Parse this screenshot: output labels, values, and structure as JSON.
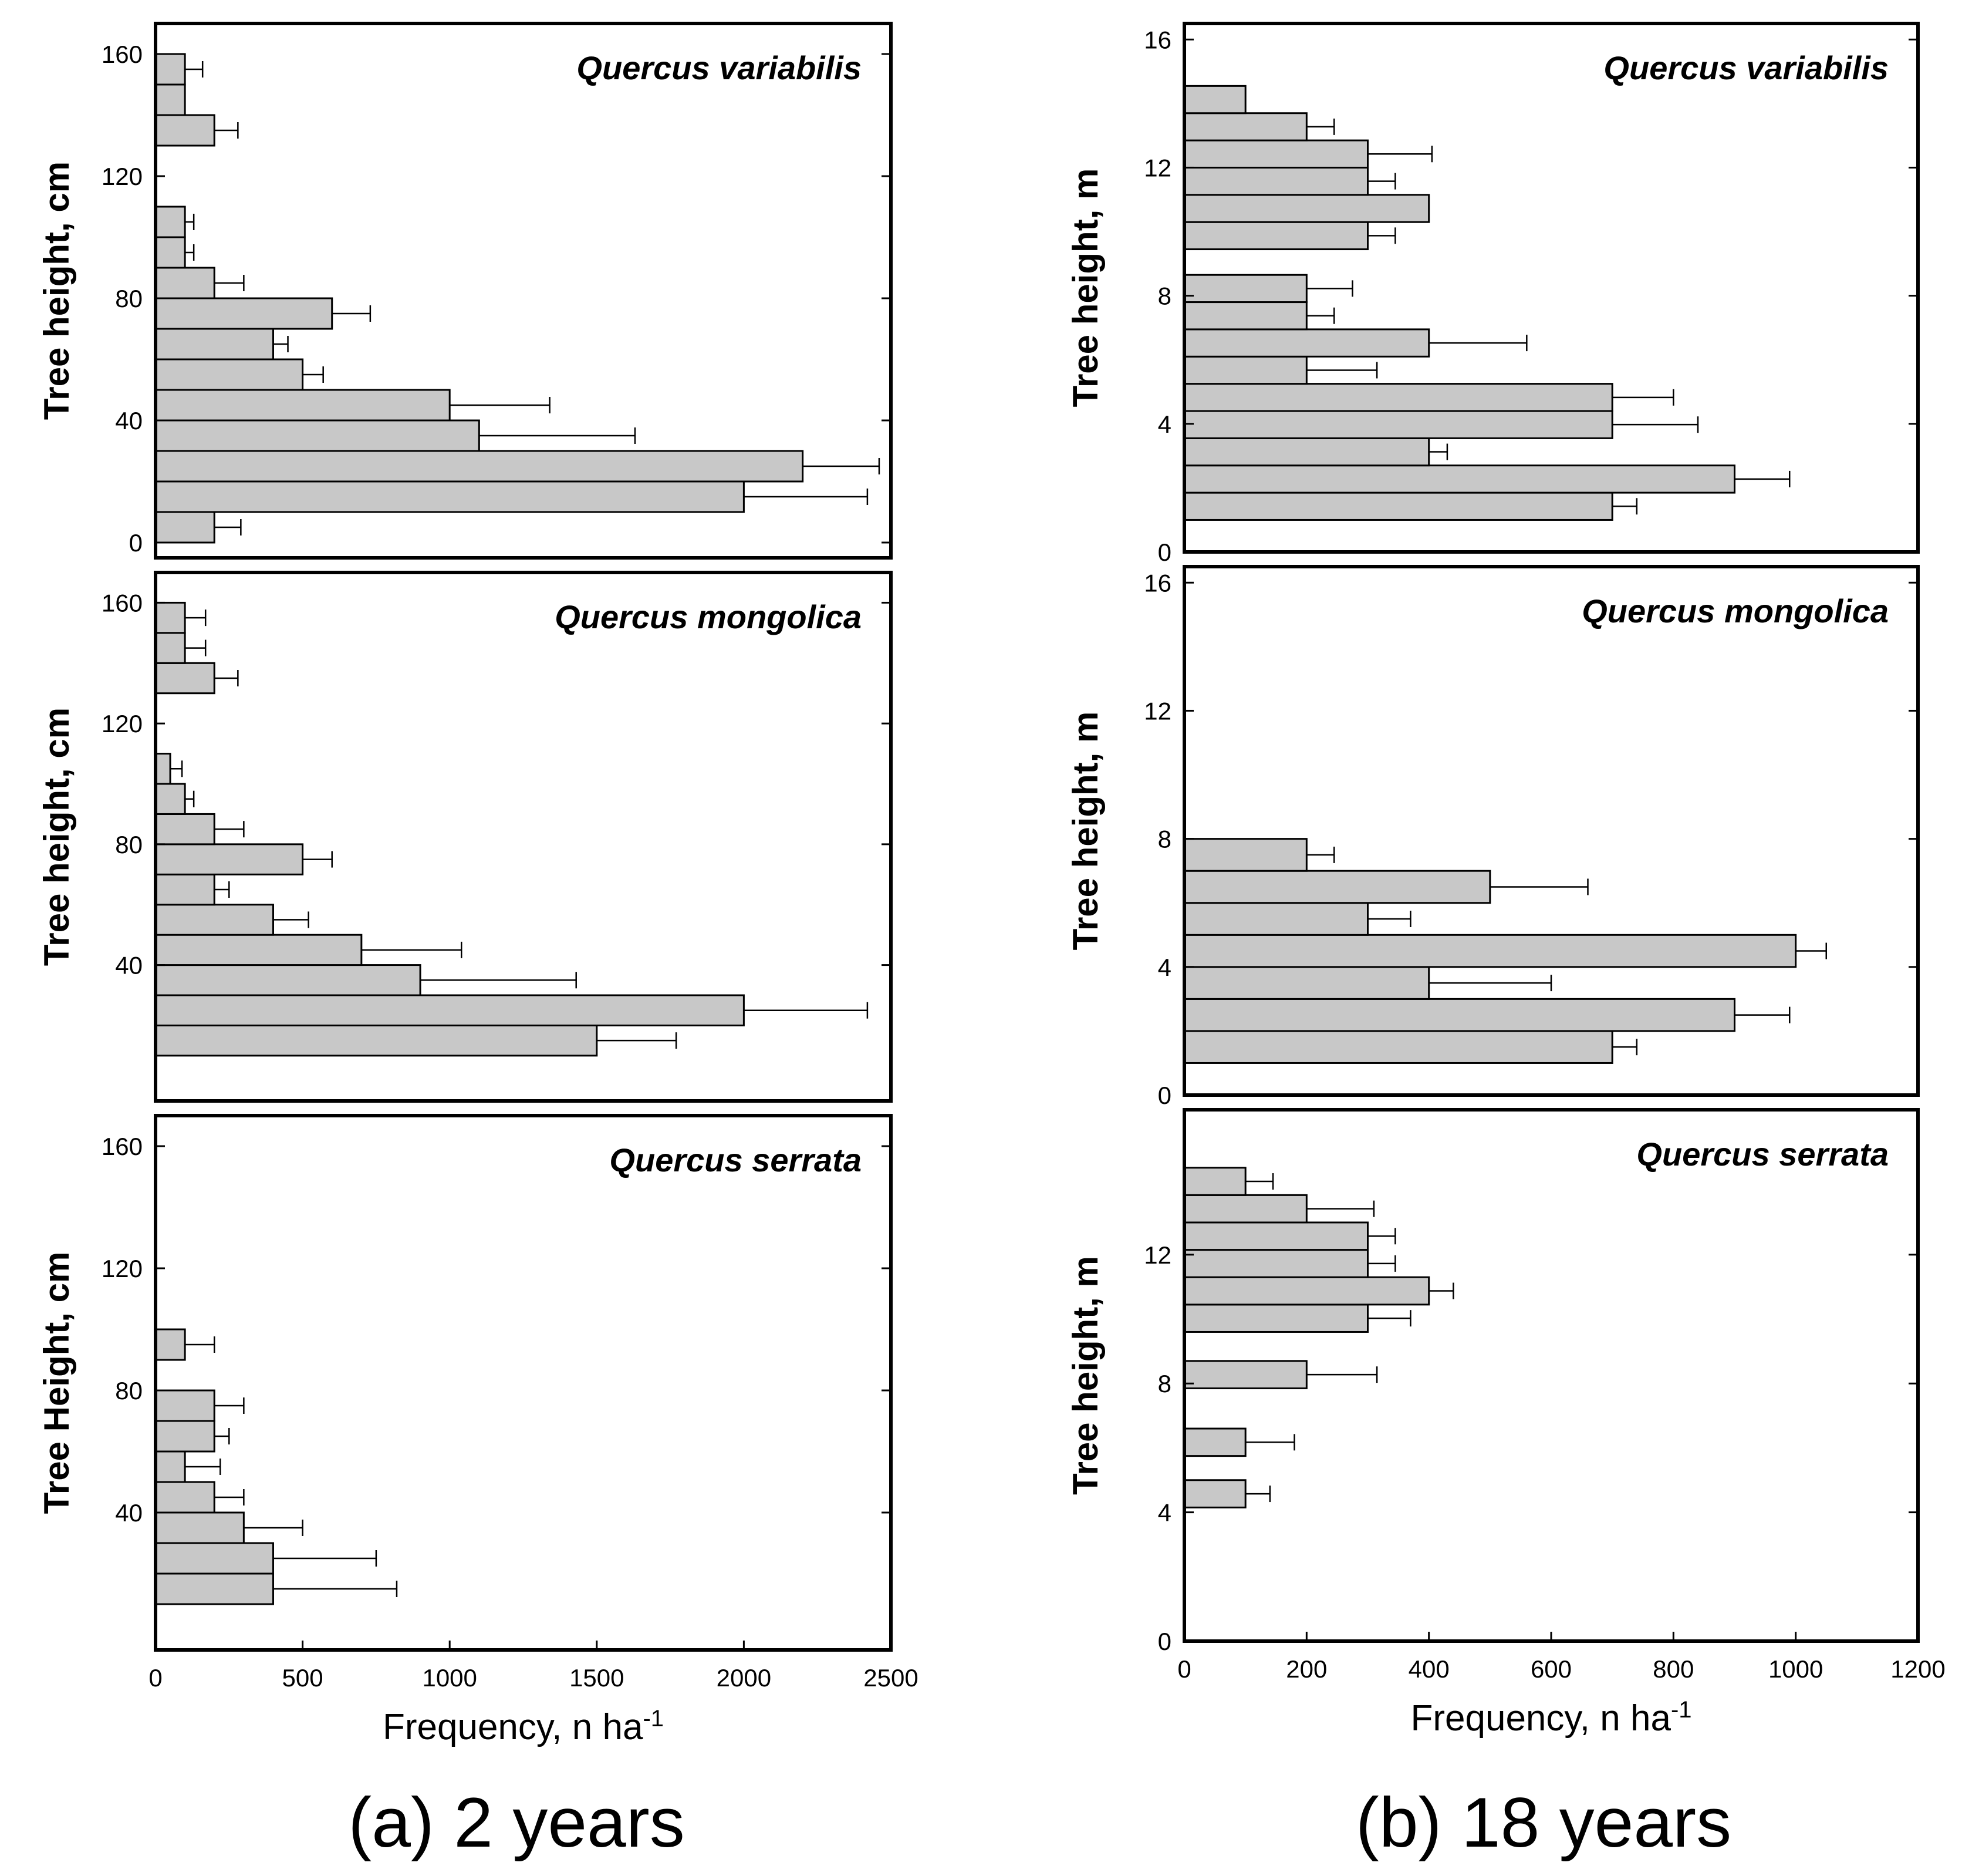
{
  "chart_data": [
    {
      "id": "a-variabilis",
      "type": "bar",
      "orientation": "horizontal",
      "species": "Quercus variabilis",
      "ylabel": "Tree height, cm",
      "ylim": [
        -5,
        170
      ],
      "yticks": [
        0,
        40,
        80,
        120,
        160
      ],
      "xlim": [
        0,
        2500
      ],
      "bin_height": 10,
      "bars": [
        {
          "y": 0,
          "value": 200,
          "err": 90
        },
        {
          "y": 10,
          "value": 2000,
          "err": 420
        },
        {
          "y": 20,
          "value": 2200,
          "err": 260
        },
        {
          "y": 30,
          "value": 1100,
          "err": 530
        },
        {
          "y": 40,
          "value": 1000,
          "err": 340
        },
        {
          "y": 50,
          "value": 500,
          "err": 70
        },
        {
          "y": 60,
          "value": 400,
          "err": 50
        },
        {
          "y": 70,
          "value": 600,
          "err": 130
        },
        {
          "y": 80,
          "value": 200,
          "err": 100
        },
        {
          "y": 90,
          "value": 100,
          "err": 30
        },
        {
          "y": 100,
          "value": 100,
          "err": 30
        },
        {
          "y": 130,
          "value": 200,
          "err": 80
        },
        {
          "y": 140,
          "value": 100,
          "err": 0
        },
        {
          "y": 150,
          "value": 100,
          "err": 60
        }
      ]
    },
    {
      "id": "a-mongolica",
      "type": "bar",
      "orientation": "horizontal",
      "species": "Quercus mongolica",
      "ylabel": "Tree height, cm",
      "ylim": [
        -5,
        170
      ],
      "yticks": [
        40,
        80,
        120,
        160
      ],
      "xlim": [
        0,
        2500
      ],
      "bin_height": 10,
      "bars": [
        {
          "y": 10,
          "value": 1500,
          "err": 270
        },
        {
          "y": 20,
          "value": 2000,
          "err": 420
        },
        {
          "y": 30,
          "value": 900,
          "err": 530
        },
        {
          "y": 40,
          "value": 700,
          "err": 340
        },
        {
          "y": 50,
          "value": 400,
          "err": 120
        },
        {
          "y": 60,
          "value": 200,
          "err": 50
        },
        {
          "y": 70,
          "value": 500,
          "err": 100
        },
        {
          "y": 80,
          "value": 200,
          "err": 100
        },
        {
          "y": 90,
          "value": 100,
          "err": 30
        },
        {
          "y": 100,
          "value": 50,
          "err": 40
        },
        {
          "y": 130,
          "value": 200,
          "err": 80
        },
        {
          "y": 140,
          "value": 100,
          "err": 70
        },
        {
          "y": 150,
          "value": 100,
          "err": 70
        }
      ]
    },
    {
      "id": "a-serrata",
      "type": "bar",
      "orientation": "horizontal",
      "species": "Quercus serrata",
      "ylabel": "Tree Height, cm",
      "ylim": [
        -5,
        170
      ],
      "yticks": [
        40,
        80,
        120,
        160
      ],
      "xlim": [
        0,
        2500
      ],
      "xticks": [
        0,
        500,
        1000,
        1500,
        2000,
        2500
      ],
      "xlabel": "Frequency, n ha",
      "xlabel_sup": "-1",
      "bin_height": 10,
      "bars": [
        {
          "y": 10,
          "value": 400,
          "err": 420
        },
        {
          "y": 20,
          "value": 400,
          "err": 350
        },
        {
          "y": 30,
          "value": 300,
          "err": 200
        },
        {
          "y": 40,
          "value": 200,
          "err": 100
        },
        {
          "y": 50,
          "value": 100,
          "err": 120
        },
        {
          "y": 60,
          "value": 200,
          "err": 50
        },
        {
          "y": 70,
          "value": 200,
          "err": 100
        },
        {
          "y": 90,
          "value": 100,
          "err": 100
        }
      ]
    },
    {
      "id": "b-variabilis",
      "type": "bar",
      "orientation": "horizontal",
      "species": "Quercus variabilis",
      "ylabel": "Tree height, m",
      "ylim": [
        0,
        16.5
      ],
      "yticks": [
        0,
        4,
        8,
        12,
        16
      ],
      "xlim": [
        0,
        1200
      ],
      "bin_height": 0.85,
      "bars": [
        {
          "y": 1.0,
          "value": 700,
          "err": 40
        },
        {
          "y": 1.85,
          "value": 900,
          "err": 90
        },
        {
          "y": 2.7,
          "value": 400,
          "err": 30
        },
        {
          "y": 3.55,
          "value": 700,
          "err": 140
        },
        {
          "y": 4.4,
          "value": 700,
          "err": 100
        },
        {
          "y": 5.25,
          "value": 200,
          "err": 115
        },
        {
          "y": 6.1,
          "value": 400,
          "err": 160
        },
        {
          "y": 6.95,
          "value": 200,
          "err": 45
        },
        {
          "y": 7.8,
          "value": 200,
          "err": 75
        },
        {
          "y": 9.45,
          "value": 300,
          "err": 45
        },
        {
          "y": 10.3,
          "value": 400,
          "err": 0
        },
        {
          "y": 11.15,
          "value": 300,
          "err": 45
        },
        {
          "y": 12.0,
          "value": 300,
          "err": 105
        },
        {
          "y": 12.85,
          "value": 200,
          "err": 45
        },
        {
          "y": 13.7,
          "value": 100,
          "err": 0
        }
      ]
    },
    {
      "id": "b-mongolica",
      "type": "bar",
      "orientation": "horizontal",
      "species": "Quercus mongolica",
      "ylabel": "Tree height, m",
      "ylim": [
        0,
        16.5
      ],
      "yticks": [
        0,
        4,
        8,
        12,
        16
      ],
      "xlim": [
        0,
        1200
      ],
      "bin_height": 1.0,
      "bars": [
        {
          "y": 1.0,
          "value": 700,
          "err": 40
        },
        {
          "y": 2.0,
          "value": 900,
          "err": 90
        },
        {
          "y": 3.0,
          "value": 400,
          "err": 200
        },
        {
          "y": 4.0,
          "value": 1000,
          "err": 50
        },
        {
          "y": 5.0,
          "value": 300,
          "err": 70
        },
        {
          "y": 6.0,
          "value": 500,
          "err": 160
        },
        {
          "y": 7.0,
          "value": 200,
          "err": 45
        }
      ]
    },
    {
      "id": "b-serrata",
      "type": "bar",
      "orientation": "horizontal",
      "species": "Quercus serrata",
      "ylabel": "Tree height, m",
      "ylim": [
        0,
        16.5
      ],
      "yticks": [
        0,
        4,
        8,
        12
      ],
      "xlim": [
        0,
        1200
      ],
      "xticks": [
        0,
        200,
        400,
        600,
        800,
        1000,
        1200
      ],
      "xlabel": "Frequency, n ha",
      "xlabel_sup": "-1",
      "bin_height": 0.85,
      "bars": [
        {
          "y": 4.15,
          "value": 100,
          "err": 40
        },
        {
          "y": 5.75,
          "value": 100,
          "err": 80
        },
        {
          "y": 7.85,
          "value": 200,
          "err": 115
        },
        {
          "y": 9.6,
          "value": 300,
          "err": 70
        },
        {
          "y": 10.45,
          "value": 400,
          "err": 40
        },
        {
          "y": 11.3,
          "value": 300,
          "err": 45
        },
        {
          "y": 12.15,
          "value": 300,
          "err": 45
        },
        {
          "y": 13.0,
          "value": 200,
          "err": 110
        },
        {
          "y": 13.85,
          "value": 100,
          "err": 45
        }
      ]
    }
  ],
  "captions": {
    "left": "(a) 2 years",
    "right": "(b) 18 years"
  }
}
